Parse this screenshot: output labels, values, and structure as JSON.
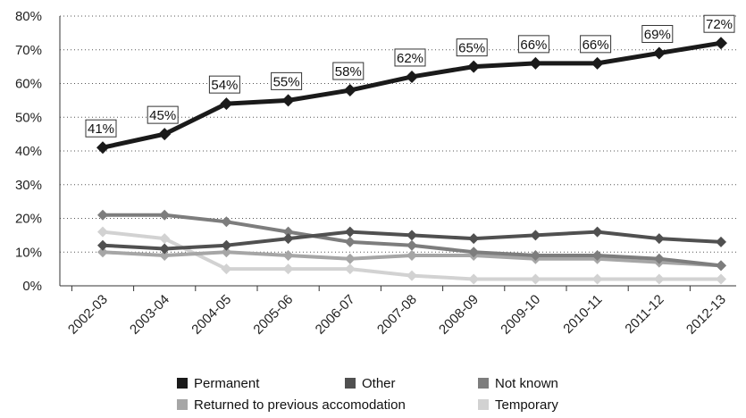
{
  "chart_data": {
    "type": "line",
    "title": "",
    "xlabel": "",
    "ylabel": "",
    "ylim": [
      0,
      80
    ],
    "y_ticks": [
      "0%",
      "10%",
      "20%",
      "30%",
      "40%",
      "50%",
      "60%",
      "70%",
      "80%"
    ],
    "categories": [
      "2002-03",
      "2003-04",
      "2004-05",
      "2005-06",
      "2006-07",
      "2007-08",
      "2008-09",
      "2009-10",
      "2010-11",
      "2011-12",
      "2012-13"
    ],
    "grid": "horizontal dotted",
    "legend_position": "bottom",
    "series": [
      {
        "name": "Permanent",
        "color": "#1a1a1a",
        "values": [
          41,
          45,
          54,
          55,
          58,
          62,
          65,
          66,
          66,
          69,
          72
        ],
        "labels": [
          "41%",
          "45%",
          "54%",
          "55%",
          "58%",
          "62%",
          "65%",
          "66%",
          "66%",
          "69%",
          "72%"
        ]
      },
      {
        "name": "Other",
        "color": "#505050",
        "values": [
          12,
          11,
          12,
          14,
          16,
          15,
          14,
          15,
          16,
          14,
          13
        ]
      },
      {
        "name": "Not known",
        "color": "#7d7d7d",
        "values": [
          21,
          21,
          19,
          16,
          13,
          12,
          10,
          9,
          9,
          8,
          6
        ]
      },
      {
        "name": "Returned to previous accomodation",
        "color": "#a6a6a6",
        "values": [
          10,
          9,
          10,
          9,
          8,
          9,
          9,
          8,
          8,
          7,
          6
        ]
      },
      {
        "name": "Temporary",
        "color": "#d2d2d2",
        "values": [
          16,
          14,
          5,
          5,
          5,
          3,
          2,
          2,
          2,
          2,
          2
        ]
      }
    ]
  }
}
